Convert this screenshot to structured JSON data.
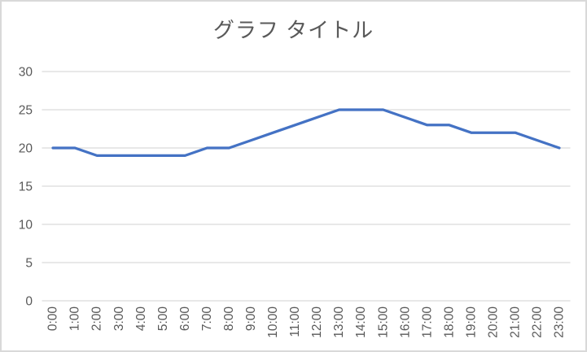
{
  "chart_data": {
    "type": "line",
    "title": "グラフ タイトル",
    "categories": [
      "0:00",
      "1:00",
      "2:00",
      "3:00",
      "4:00",
      "5:00",
      "6:00",
      "7:00",
      "8:00",
      "9:00",
      "10:00",
      "11:00",
      "12:00",
      "13:00",
      "14:00",
      "15:00",
      "16:00",
      "17:00",
      "18:00",
      "19:00",
      "20:00",
      "21:00",
      "22:00",
      "23:00"
    ],
    "values": [
      20,
      20,
      19,
      19,
      19,
      19,
      19,
      20,
      20,
      21,
      22,
      23,
      24,
      25,
      25,
      25,
      24,
      23,
      23,
      22,
      22,
      22,
      21,
      20
    ],
    "xlabel": "",
    "ylabel": "",
    "ylim": [
      0,
      30
    ],
    "yticks": [
      0,
      5,
      10,
      15,
      20,
      25,
      30
    ],
    "grid": true,
    "legend_position": "none",
    "x_tick_rotation": -90,
    "colors": {
      "line": "#4472C4",
      "gridline": "#D9D9D9",
      "axis_line": "#D9D9D9",
      "tick_label": "#595959",
      "title": "#595959",
      "background": "#FFFFFF",
      "border": "#D9D9D9"
    }
  }
}
